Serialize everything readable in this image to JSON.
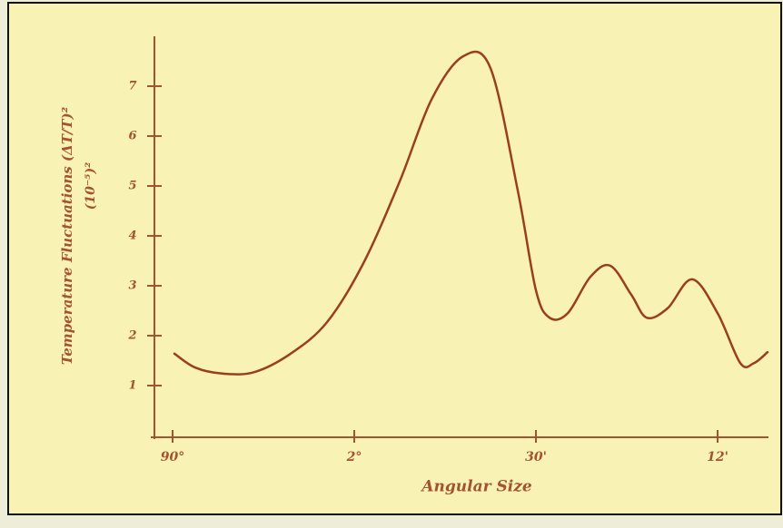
{
  "chart_data": {
    "type": "line",
    "ylabel": "Temperature Fluctuations (ΔT/T)²",
    "ylabel2": "(10⁻⁵)²",
    "xlabel": "Angular Size",
    "x": [
      0.01,
      0.125,
      0.275,
      0.45,
      0.65,
      0.85,
      1.05,
      1.25,
      1.425,
      1.6,
      1.75,
      1.9,
      2.0,
      2.075,
      2.175,
      2.3,
      2.41,
      2.525,
      2.61,
      2.725,
      2.86,
      3.0,
      3.125,
      3.2,
      3.275
    ],
    "values": [
      1.64,
      1.36,
      1.24,
      1.27,
      1.64,
      2.27,
      3.45,
      5.09,
      6.73,
      7.6,
      7.36,
      4.91,
      2.91,
      2.36,
      2.45,
      3.18,
      3.4,
      2.82,
      2.36,
      2.55,
      3.13,
      2.45,
      1.45,
      1.45,
      1.67
    ],
    "color": "#9a3f1c",
    "xlim": [
      -0.12,
      3.28
    ],
    "ylim": [
      0,
      8
    ],
    "xticks": [
      {
        "value": 0,
        "label": "90°"
      },
      {
        "value": 1,
        "label": "2°"
      },
      {
        "value": 2,
        "label": "30'"
      },
      {
        "value": 3,
        "label": "12'"
      }
    ],
    "yticks": [
      1,
      2,
      3,
      4,
      5,
      6,
      7
    ]
  }
}
